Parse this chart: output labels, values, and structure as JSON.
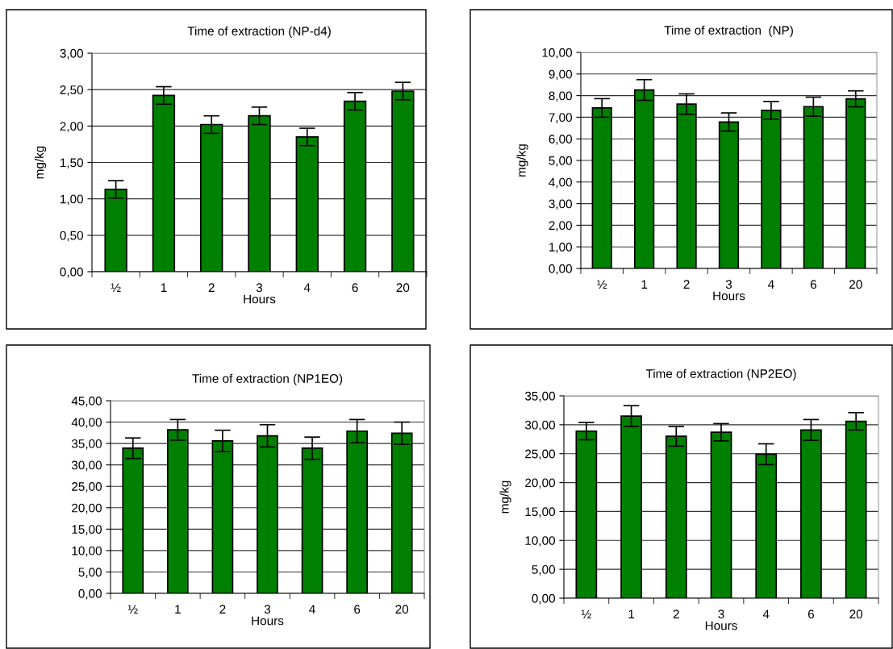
{
  "chart_data": [
    {
      "type": "bar",
      "title": "Time of extraction (NP-d4)",
      "xlabel": "Hours",
      "ylabel": "mg/kg",
      "categories": [
        "½",
        "1",
        "2",
        "3",
        "4",
        "6",
        "20"
      ],
      "color": "#008000",
      "values": [
        1.13,
        2.42,
        2.02,
        2.14,
        1.85,
        2.34,
        2.48
      ],
      "errors": [
        0.12,
        0.12,
        0.12,
        0.12,
        0.12,
        0.12,
        0.12
      ],
      "ylim": [
        0,
        3
      ],
      "yticks": [
        {
          "value": 0,
          "label": "0,00"
        },
        {
          "value": 0.5,
          "label": "0,50"
        },
        {
          "value": 1,
          "label": "1,00"
        },
        {
          "value": 1.5,
          "label": "1,50"
        },
        {
          "value": 2,
          "label": "2,00"
        },
        {
          "value": 2.5,
          "label": "2,50"
        },
        {
          "value": 3,
          "label": "3,00"
        }
      ],
      "grid": "y"
    },
    {
      "type": "bar",
      "title": "Time of extraction  (NP)",
      "xlabel": "Hours",
      "ylabel": "mg/kg",
      "categories": [
        "½",
        "1",
        "2",
        "3",
        "4",
        "6",
        "20"
      ],
      "color": "#008000",
      "values": [
        7.43,
        8.26,
        7.61,
        6.78,
        7.32,
        7.49,
        7.85
      ],
      "errors": [
        0.43,
        0.48,
        0.47,
        0.42,
        0.41,
        0.44,
        0.37
      ],
      "ylim": [
        0,
        10
      ],
      "yticks": [
        {
          "value": 0,
          "label": "0,00"
        },
        {
          "value": 1,
          "label": "1,00"
        },
        {
          "value": 2,
          "label": "2,00"
        },
        {
          "value": 3,
          "label": "3,00"
        },
        {
          "value": 4,
          "label": "4,00"
        },
        {
          "value": 5,
          "label": "5,00"
        },
        {
          "value": 6,
          "label": "6,00"
        },
        {
          "value": 7,
          "label": "7,00"
        },
        {
          "value": 8,
          "label": "8,00"
        },
        {
          "value": 9,
          "label": "9,00"
        },
        {
          "value": 10,
          "label": "10,00"
        }
      ],
      "grid": "y"
    },
    {
      "type": "bar",
      "title": "Time of extraction (NP1EO)",
      "xlabel": "Hours",
      "categories": [
        "½",
        "1",
        "2",
        "3",
        "4",
        "6",
        "20"
      ],
      "color": "#008000",
      "values": [
        33.9,
        38.2,
        35.6,
        36.8,
        33.9,
        37.9,
        37.4
      ],
      "errors": [
        2.4,
        2.4,
        2.5,
        2.6,
        2.6,
        2.7,
        2.6
      ],
      "ylim": [
        0,
        45
      ],
      "yticks": [
        {
          "value": 0,
          "label": "0,00"
        },
        {
          "value": 5,
          "label": "5,00"
        },
        {
          "value": 10,
          "label": "10,00"
        },
        {
          "value": 15,
          "label": "15,00"
        },
        {
          "value": 20,
          "label": "20,00"
        },
        {
          "value": 25,
          "label": "25,00"
        },
        {
          "value": 30,
          "label": "30,00"
        },
        {
          "value": 35,
          "label": "35,00"
        },
        {
          "value": 40,
          "label": "40,00"
        },
        {
          "value": 45,
          "label": "45,00"
        }
      ],
      "grid": "y"
    },
    {
      "type": "bar",
      "title": "Time of extraction (NP2EO)",
      "xlabel": "Hours",
      "ylabel": "mg/kg",
      "categories": [
        "½",
        "1",
        "2",
        "3",
        "4",
        "6",
        "20"
      ],
      "color": "#008000",
      "values": [
        28.9,
        31.5,
        28.0,
        28.7,
        24.9,
        29.1,
        30.6
      ],
      "errors": [
        1.5,
        1.8,
        1.7,
        1.5,
        1.8,
        1.8,
        1.5
      ],
      "ylim": [
        0,
        35
      ],
      "yticks": [
        {
          "value": 0,
          "label": "0,00"
        },
        {
          "value": 5,
          "label": "5,00"
        },
        {
          "value": 10,
          "label": "10,00"
        },
        {
          "value": 15,
          "label": "15,00"
        },
        {
          "value": 20,
          "label": "20,00"
        },
        {
          "value": 25,
          "label": "25,00"
        },
        {
          "value": 30,
          "label": "30,00"
        },
        {
          "value": 35,
          "label": "35,00"
        }
      ],
      "grid": "y"
    }
  ]
}
